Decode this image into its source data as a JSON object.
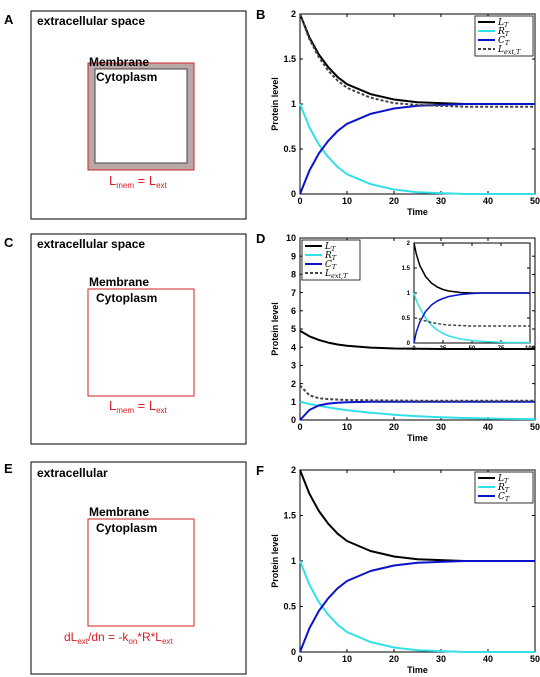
{
  "panels": [
    {
      "letter": "A",
      "region_label": "extracellular space",
      "membrane_label": "Membrane",
      "cytoplasm_label": "Cytoplasm",
      "boundary_condition": {
        "main": "L",
        "sub1": "mem",
        "eq": " = ",
        "main2": "L",
        "sub2": "ext"
      },
      "membrane_shaded": true
    },
    {
      "letter": "C",
      "region_label": "extracellular space",
      "membrane_label": "Membrane",
      "cytoplasm_label": "Cytoplasm",
      "boundary_condition": {
        "main": "L",
        "sub1": "mem",
        "eq": " = ",
        "main2": "L",
        "sub2": "ext"
      },
      "membrane_shaded": false
    },
    {
      "letter": "E",
      "region_label": "extracellular",
      "membrane_label": "Membrane",
      "cytoplasm_label": "Cytoplasm",
      "boundary_condition_flux": {
        "p1": "dL",
        "s1": "ext",
        "p2": "/dn = -k",
        "s2": "on",
        "p3": "*R*L",
        "s3": "ext"
      },
      "membrane_shaded": false
    }
  ],
  "colors": {
    "L_T": "#000000",
    "R_T": "#33e0e8",
    "C_T": "#0a14c8",
    "L_ext_T": "#444444",
    "annotation_red": "#d42027",
    "membrane_fill": "#b8a8a8"
  },
  "chart_data": [
    {
      "letter": "B",
      "type": "line",
      "xlabel": "Time",
      "ylabel": "Protein level",
      "xlim": [
        0,
        50
      ],
      "ylim": [
        0,
        2
      ],
      "xticks": [
        "0",
        "10",
        "20",
        "30",
        "40",
        "50"
      ],
      "yticks": [
        "0",
        "0.5",
        "1",
        "1.5",
        "2"
      ],
      "legend": [
        "L_T",
        "R_T",
        "C_T",
        "L_ext,T"
      ],
      "x": [
        0,
        2,
        4,
        6,
        8,
        10,
        15,
        20,
        25,
        30,
        35,
        40,
        45,
        50
      ],
      "series": [
        {
          "name": "L_T",
          "style": "solid",
          "values": [
            2.0,
            1.74,
            1.55,
            1.41,
            1.3,
            1.22,
            1.11,
            1.05,
            1.02,
            1.01,
            1.0,
            1.0,
            1.0,
            1.0
          ]
        },
        {
          "name": "R_T",
          "style": "solid",
          "values": [
            1.0,
            0.74,
            0.55,
            0.41,
            0.3,
            0.22,
            0.11,
            0.05,
            0.02,
            0.01,
            0.0,
            0.0,
            0.0,
            0.0
          ]
        },
        {
          "name": "C_T",
          "style": "solid",
          "values": [
            0.0,
            0.26,
            0.45,
            0.59,
            0.7,
            0.78,
            0.89,
            0.95,
            0.98,
            0.99,
            1.0,
            1.0,
            1.0,
            1.0
          ]
        },
        {
          "name": "L_ext,T",
          "style": "dashed",
          "values": [
            2.0,
            1.72,
            1.52,
            1.37,
            1.26,
            1.18,
            1.07,
            1.01,
            0.99,
            0.98,
            0.97,
            0.97,
            0.97,
            0.97
          ]
        }
      ]
    },
    {
      "letter": "D",
      "type": "line",
      "xlabel": "Time",
      "ylabel": "Protein level",
      "xlim": [
        0,
        50
      ],
      "ylim": [
        0,
        10
      ],
      "xticks": [
        "0",
        "10",
        "20",
        "30",
        "40",
        "50"
      ],
      "yticks": [
        "0",
        "1",
        "2",
        "3",
        "4",
        "5",
        "6",
        "7",
        "8",
        "9",
        "10"
      ],
      "legend": [
        "L_T",
        "R_T",
        "C_T",
        "L_ext,T"
      ],
      "x": [
        0,
        2,
        4,
        6,
        8,
        10,
        15,
        20,
        25,
        30,
        35,
        40,
        45,
        50
      ],
      "series": [
        {
          "name": "L_T",
          "style": "solid",
          "values": [
            4.9,
            4.6,
            4.4,
            4.25,
            4.15,
            4.08,
            3.98,
            3.93,
            3.91,
            3.9,
            3.9,
            3.9,
            3.9,
            3.9
          ]
        },
        {
          "name": "R_T",
          "style": "solid",
          "values": [
            1.0,
            0.88,
            0.78,
            0.69,
            0.61,
            0.54,
            0.4,
            0.29,
            0.21,
            0.15,
            0.11,
            0.08,
            0.06,
            0.05
          ]
        },
        {
          "name": "C_T",
          "style": "solid",
          "values": [
            0.0,
            0.55,
            0.8,
            0.9,
            0.95,
            0.98,
            1.0,
            1.0,
            1.0,
            1.0,
            1.0,
            1.0,
            1.0,
            1.0
          ]
        },
        {
          "name": "L_ext,T",
          "style": "dashed",
          "values": [
            1.9,
            1.35,
            1.2,
            1.15,
            1.12,
            1.1,
            1.08,
            1.07,
            1.06,
            1.06,
            1.06,
            1.06,
            1.06,
            1.06
          ]
        }
      ],
      "inset": {
        "xlim": [
          0,
          100
        ],
        "ylim": [
          0,
          2
        ],
        "xticks": [
          "0",
          "25",
          "50",
          "75",
          "100"
        ],
        "yticks": [
          "0",
          "0.5",
          "1",
          "1.5",
          "2"
        ],
        "x": [
          0,
          2,
          5,
          10,
          15,
          20,
          25,
          30,
          40,
          50,
          60,
          70,
          80,
          90,
          100
        ],
        "series": [
          {
            "name": "L_T",
            "style": "solid",
            "values": [
              2.0,
              1.78,
              1.55,
              1.33,
              1.2,
              1.12,
              1.07,
              1.04,
              1.01,
              1.0,
              1.0,
              1.0,
              1.0,
              1.0,
              1.0
            ]
          },
          {
            "name": "R_T",
            "style": "solid",
            "values": [
              1.0,
              0.85,
              0.7,
              0.5,
              0.36,
              0.26,
              0.19,
              0.14,
              0.08,
              0.05,
              0.03,
              0.02,
              0.01,
              0.01,
              0.01
            ]
          },
          {
            "name": "C_T",
            "style": "solid",
            "values": [
              0.0,
              0.22,
              0.42,
              0.63,
              0.76,
              0.84,
              0.89,
              0.93,
              0.97,
              0.99,
              1.0,
              1.0,
              1.0,
              1.0,
              1.0
            ]
          },
          {
            "name": "L_ext,T",
            "style": "dashed",
            "values": [
              0.5,
              0.5,
              0.48,
              0.44,
              0.41,
              0.39,
              0.37,
              0.36,
              0.35,
              0.34,
              0.34,
              0.34,
              0.34,
              0.34,
              0.34
            ]
          }
        ]
      }
    },
    {
      "letter": "F",
      "type": "line",
      "xlabel": "Time",
      "ylabel": "Protein level",
      "xlim": [
        0,
        50
      ],
      "ylim": [
        0,
        2
      ],
      "xticks": [
        "0",
        "10",
        "20",
        "30",
        "40",
        "50"
      ],
      "yticks": [
        "0",
        "0.5",
        "1",
        "1.5",
        "2"
      ],
      "legend": [
        "L_T",
        "R_T",
        "C_T"
      ],
      "x": [
        0,
        2,
        4,
        6,
        8,
        10,
        15,
        20,
        25,
        30,
        35,
        40,
        45,
        50
      ],
      "series": [
        {
          "name": "L_T",
          "style": "solid",
          "values": [
            2.0,
            1.74,
            1.55,
            1.41,
            1.3,
            1.22,
            1.11,
            1.05,
            1.02,
            1.01,
            1.0,
            1.0,
            1.0,
            1.0
          ]
        },
        {
          "name": "R_T",
          "style": "solid",
          "values": [
            1.0,
            0.74,
            0.55,
            0.41,
            0.3,
            0.22,
            0.11,
            0.05,
            0.02,
            0.01,
            0.0,
            0.0,
            0.0,
            0.0
          ]
        },
        {
          "name": "C_T",
          "style": "solid",
          "values": [
            0.0,
            0.26,
            0.45,
            0.59,
            0.7,
            0.78,
            0.89,
            0.95,
            0.98,
            0.99,
            1.0,
            1.0,
            1.0,
            1.0
          ]
        }
      ]
    }
  ]
}
